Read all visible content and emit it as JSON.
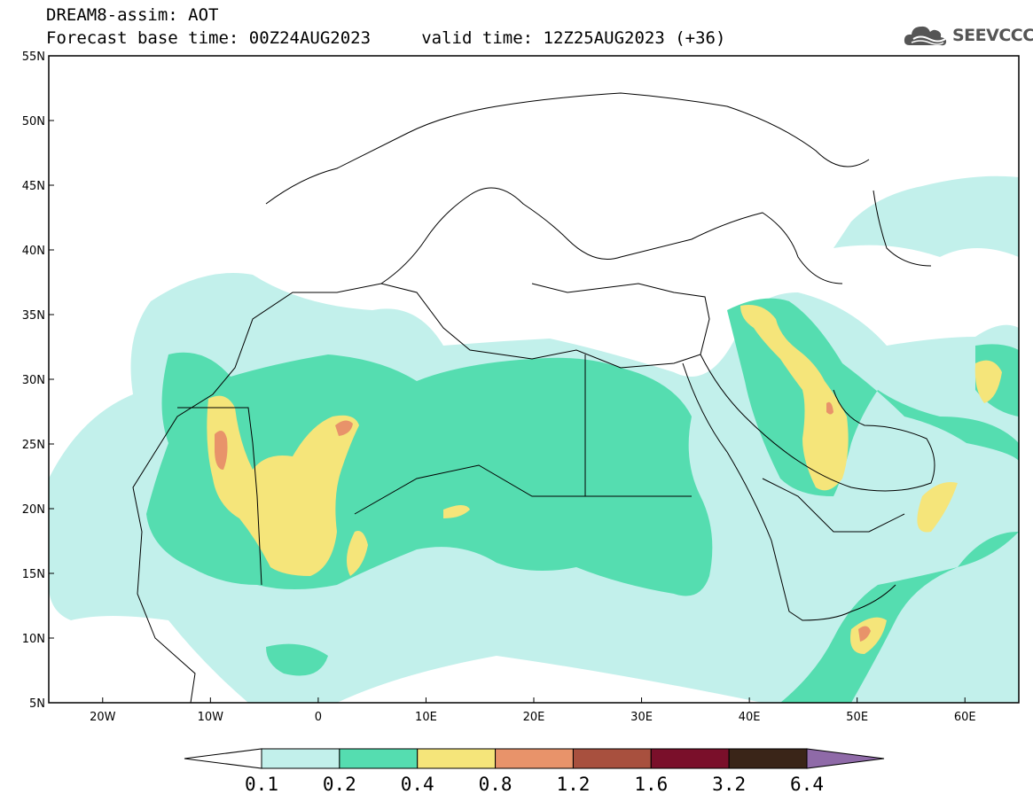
{
  "header": {
    "line1": "DREAM8-assim: AOT",
    "line2": "Forecast base time: 00Z24AUG2023     valid time: 12Z25AUG2023 (+36)"
  },
  "logo": {
    "text": "SEEVCCC",
    "icon": "cloud-icon"
  },
  "map": {
    "lat_range": [
      5,
      55
    ],
    "lon_range": [
      -25,
      65
    ],
    "lat_labels": [
      "55N",
      "50N",
      "45N",
      "40N",
      "35N",
      "30N",
      "25N",
      "20N",
      "15N",
      "10N",
      "5N"
    ],
    "lon_labels": [
      "20W",
      "10W",
      "0",
      "10E",
      "20E",
      "30E",
      "40E",
      "50E",
      "60E"
    ],
    "field": "AOT"
  },
  "legend": {
    "labels": [
      "0.1",
      "0.2",
      "0.4",
      "0.8",
      "1.2",
      "1.6",
      "3.2",
      "6.4"
    ],
    "colors": [
      "#ffffff",
      "#c2f0eb",
      "#55ddb0",
      "#f5e57a",
      "#e8936a",
      "#a8503e",
      "#7a0f2a",
      "#3a2518",
      "#8f6aa8"
    ]
  }
}
